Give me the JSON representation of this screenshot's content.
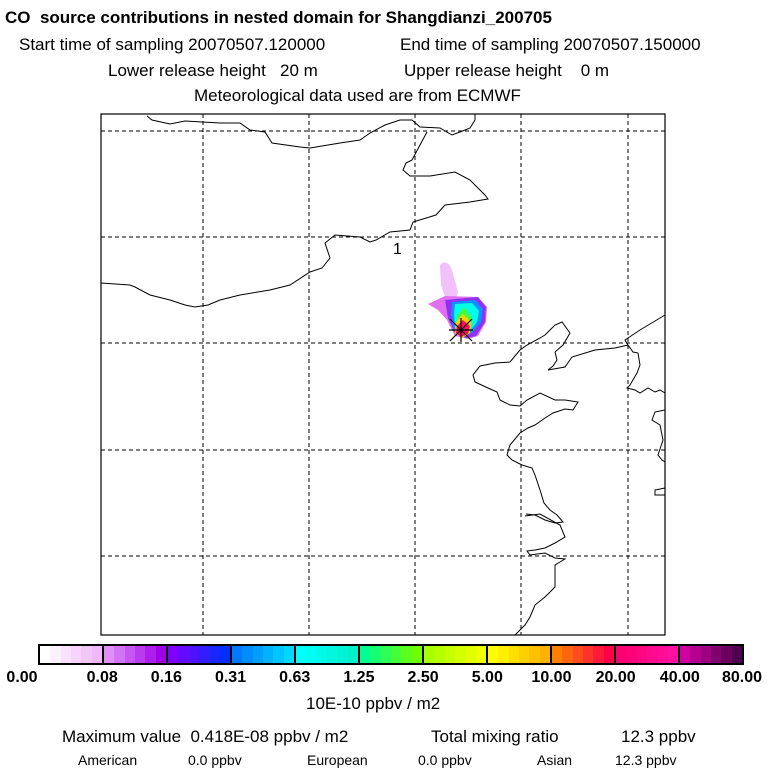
{
  "title": "CO  source contributions in nested domain for Shangdianzi_200705",
  "sampling": {
    "start": "Start time of sampling 20070507.120000",
    "end": "End time of sampling 20070507.150000"
  },
  "release": {
    "lower": "Lower release height   20 m",
    "upper": "Upper release height    0 m"
  },
  "meteo": "Meteorological data used are from ECMWF",
  "map": {
    "region_label": "1",
    "receptor_marker": "star-icon"
  },
  "colorbar": {
    "labels": [
      "0.00",
      "0.08",
      "0.16",
      "0.31",
      "0.63",
      "1.25",
      "2.50",
      "5.00",
      "10.00",
      "20.00",
      "40.00",
      "80.00"
    ],
    "segments": [
      [
        "#ffffff",
        "#f0b8f8"
      ],
      [
        "#e090f8",
        "#a000e8"
      ],
      [
        "#8000ff",
        "#0030ff"
      ],
      [
        "#0078ff",
        "#00d8ff"
      ],
      [
        "#00ffff",
        "#00f0c8"
      ],
      [
        "#00ff90",
        "#70ff00"
      ],
      [
        "#a8ff00",
        "#f0ff00"
      ],
      [
        "#ffff00",
        "#ffb000"
      ],
      [
        "#ff8000",
        "#ff0048"
      ],
      [
        "#ff0070",
        "#ff10a0"
      ],
      [
        "#d000a0",
        "#500050"
      ]
    ],
    "unit": "10E-10 ppbv / m2"
  },
  "summary": {
    "max_label": "Maximum value  0.418E-08 ppbv / m2",
    "total_label": "Total mixing ratio",
    "total_value": "12.3 ppbv",
    "american_label": "American",
    "american_value": "0.0 ppbv",
    "european_label": "European",
    "european_value": "0.0 ppbv",
    "asian_label": "Asian",
    "asian_value": "12.3 ppbv"
  }
}
